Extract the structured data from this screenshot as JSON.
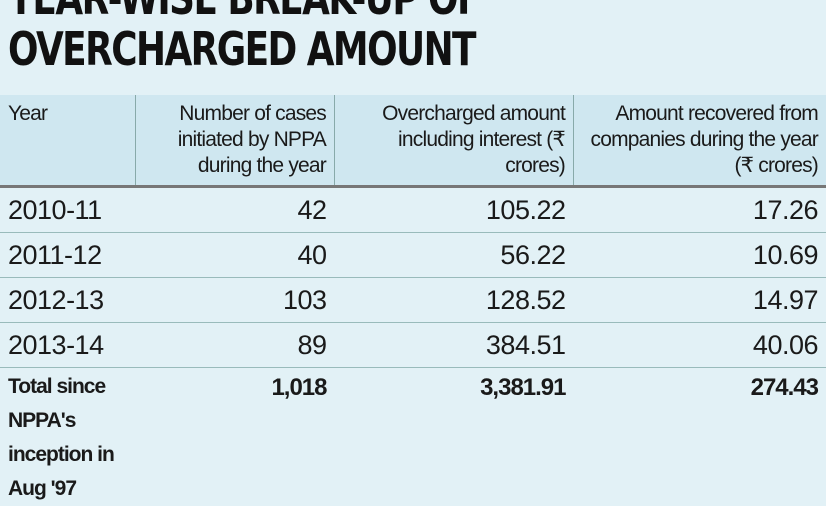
{
  "title_lines": [
    "YEAR-WISE BREAK-UP OF",
    "OVERCHARGED AMOUNT"
  ],
  "chart_data": {
    "type": "table",
    "columns": [
      "Year",
      "Number of cases initiated by NPPA during the year",
      "Overcharged amount including interest (₹ crores)",
      "Amount recovered from companies during the year (₹ crores)"
    ],
    "rows": [
      [
        "2010-11",
        "42",
        "105.22",
        "17.26"
      ],
      [
        "2011-12",
        "40",
        "56.22",
        "10.69"
      ],
      [
        "2012-13",
        "103",
        "128.52",
        "14.97"
      ],
      [
        "2013-14",
        "89",
        "384.51",
        "40.06"
      ]
    ],
    "total": [
      "Total since NPPA's inception in Aug '97",
      "1,018",
      "3,381.91",
      "274.43"
    ]
  }
}
